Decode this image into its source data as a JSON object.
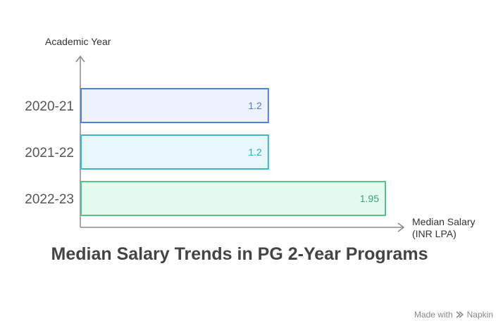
{
  "chart_data": {
    "type": "bar",
    "orientation": "horizontal",
    "title": "Median Salary Trends in PG 2-Year Programs",
    "xlabel": [
      "Median Salary",
      "(INR LPA)"
    ],
    "ylabel": "Academic Year",
    "categories": [
      "2020-21",
      "2021-22",
      "2022-23"
    ],
    "values": [
      1.2,
      1.2,
      1.95
    ],
    "value_labels": [
      "1.2",
      "1.2",
      "1.95"
    ],
    "grid": false,
    "colors": {
      "fills": [
        "#edf2fd",
        "#e8f7fd",
        "#e3fbef"
      ],
      "strokes": [
        "#5083d3",
        "#3bb4d2",
        "#55c38a"
      ],
      "labels": [
        "#4a7fd0",
        "#2aa8ca",
        "#3aa56d"
      ],
      "axis": "#8a8a8a",
      "text": "#555555"
    }
  },
  "watermark": {
    "text": "Made with",
    "brand": "Napkin",
    "icon": "napkin-logo-icon"
  }
}
